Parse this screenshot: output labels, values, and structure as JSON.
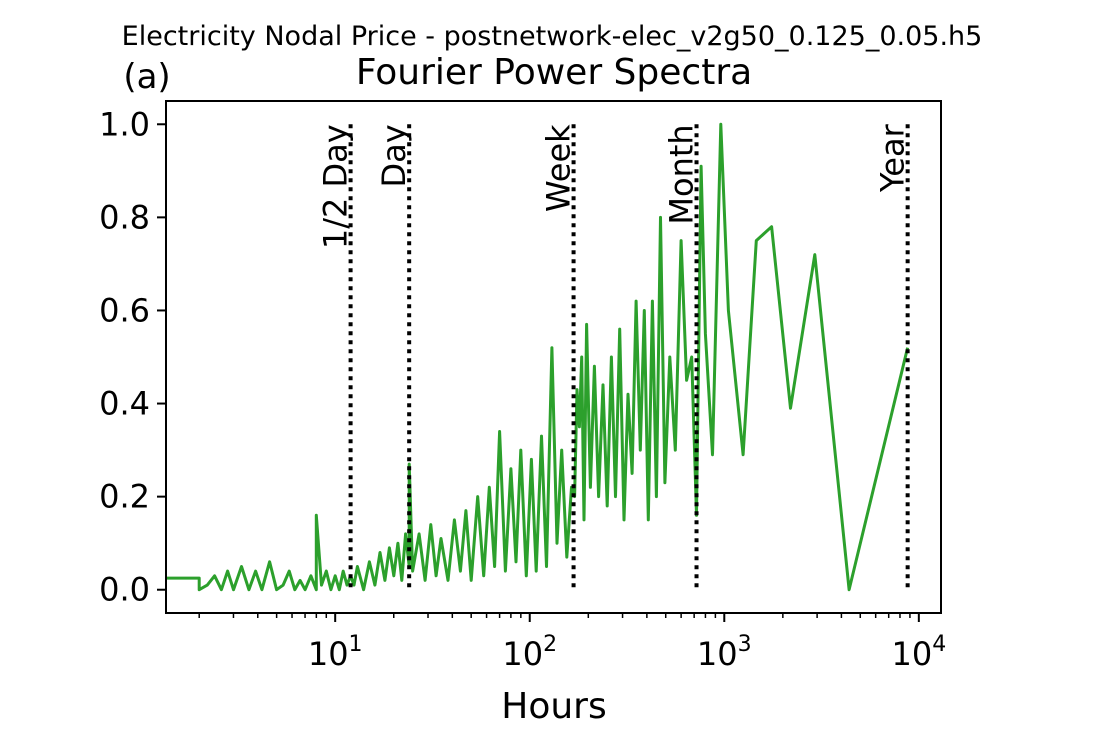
{
  "chart_data": {
    "type": "line",
    "suptitle": "Electricity Nodal Price - postnetwork-elec_v2g50_0.125_0.05.h5",
    "panel_label": "(a)",
    "title": "Fourier Power Spectra",
    "xlabel": "Hours",
    "ylabel": "",
    "xscale": "log",
    "xlim": [
      1.35,
      13000
    ],
    "ylim": [
      -0.05,
      1.05
    ],
    "x_ticks": [
      {
        "value": 10,
        "label": "10",
        "exp": "1"
      },
      {
        "value": 100,
        "label": "10",
        "exp": "2"
      },
      {
        "value": 1000,
        "label": "10",
        "exp": "3"
      },
      {
        "value": 10000,
        "label": "10",
        "exp": "4"
      }
    ],
    "y_ticks": [
      0.0,
      0.2,
      0.4,
      0.6,
      0.8,
      1.0
    ],
    "y_tick_labels": [
      "0.0",
      "0.2",
      "0.4",
      "0.6",
      "0.8",
      "1.0"
    ],
    "grid": false,
    "colors": {
      "series": "#2ca02c",
      "markers": "#000000"
    },
    "markers": [
      {
        "label": "1/2 Day",
        "x": 12
      },
      {
        "label": "Day",
        "x": 24
      },
      {
        "label": "Week",
        "x": 168
      },
      {
        "label": "Month",
        "x": 720
      },
      {
        "label": "Year",
        "x": 8760
      }
    ],
    "series": [
      {
        "x": [
          1.35,
          2.0,
          2.0,
          2.2,
          2.4,
          2.6,
          2.8,
          3.0,
          3.3,
          3.6,
          3.9,
          4.2,
          4.6,
          5.0,
          5.4,
          5.8,
          6.2,
          6.6,
          7.0,
          7.5,
          8.0,
          8.0,
          8.5,
          9.0,
          9.5,
          10.0,
          10.5,
          11.0,
          11.5,
          12.0,
          12.5,
          13.0,
          14.0,
          15.0,
          16.0,
          17.0,
          18.0,
          19.0,
          20.0,
          21.0,
          22.0,
          23.0,
          24.0,
          24.0,
          25.0,
          27.0,
          29.0,
          31.0,
          33.0,
          35.0,
          38.0,
          41.0,
          44.0,
          47.0,
          50.0,
          54.0,
          58.0,
          62.0,
          66.0,
          70.0,
          75.0,
          80.0,
          85.0,
          90.0,
          96.0,
          102.0,
          108.0,
          115.0,
          122.0,
          130.0,
          138.0,
          146.0,
          155.0,
          164.0,
          170.0,
          175.0,
          180.0,
          185.0,
          190.0,
          196.0,
          205.0,
          215.0,
          226.0,
          238.0,
          250.0,
          263.0,
          276.0,
          290.0,
          305.0,
          320.0,
          336.0,
          352.0,
          370.0,
          388.0,
          407.0,
          427.0,
          448.0,
          470.0,
          495.0,
          525.0,
          560.0,
          600.0,
          640.0,
          680.0,
          720.0,
          760.0,
          800.0,
          870.0,
          960.0,
          1050.0,
          1250.0,
          1460.0,
          1750.0,
          2190.0,
          2920.0,
          4380.0,
          8760.0
        ],
        "y": [
          0.025,
          0.025,
          0.0,
          0.01,
          0.03,
          0.0,
          0.04,
          0.0,
          0.05,
          0.0,
          0.04,
          0.0,
          0.06,
          0.0,
          0.01,
          0.04,
          0.0,
          0.02,
          0.0,
          0.03,
          0.0,
          0.16,
          0.01,
          0.04,
          0.0,
          0.03,
          0.0,
          0.04,
          0.01,
          0.03,
          0.01,
          0.05,
          0.0,
          0.06,
          0.01,
          0.08,
          0.02,
          0.09,
          0.03,
          0.1,
          0.02,
          0.12,
          0.05,
          0.27,
          0.04,
          0.12,
          0.02,
          0.14,
          0.03,
          0.11,
          0.02,
          0.15,
          0.04,
          0.17,
          0.02,
          0.2,
          0.03,
          0.22,
          0.05,
          0.34,
          0.04,
          0.26,
          0.06,
          0.3,
          0.03,
          0.28,
          0.04,
          0.33,
          0.05,
          0.52,
          0.1,
          0.3,
          0.07,
          0.22,
          0.2,
          0.43,
          0.35,
          0.5,
          0.15,
          0.57,
          0.22,
          0.48,
          0.2,
          0.44,
          0.18,
          0.5,
          0.2,
          0.56,
          0.15,
          0.42,
          0.25,
          0.62,
          0.3,
          0.6,
          0.15,
          0.62,
          0.2,
          0.8,
          0.23,
          0.5,
          0.3,
          0.75,
          0.45,
          0.5,
          0.16,
          0.91,
          0.55,
          0.29,
          1.0,
          0.6,
          0.29,
          0.75,
          0.78,
          0.39,
          0.72,
          0.0,
          0.52
        ]
      }
    ]
  }
}
